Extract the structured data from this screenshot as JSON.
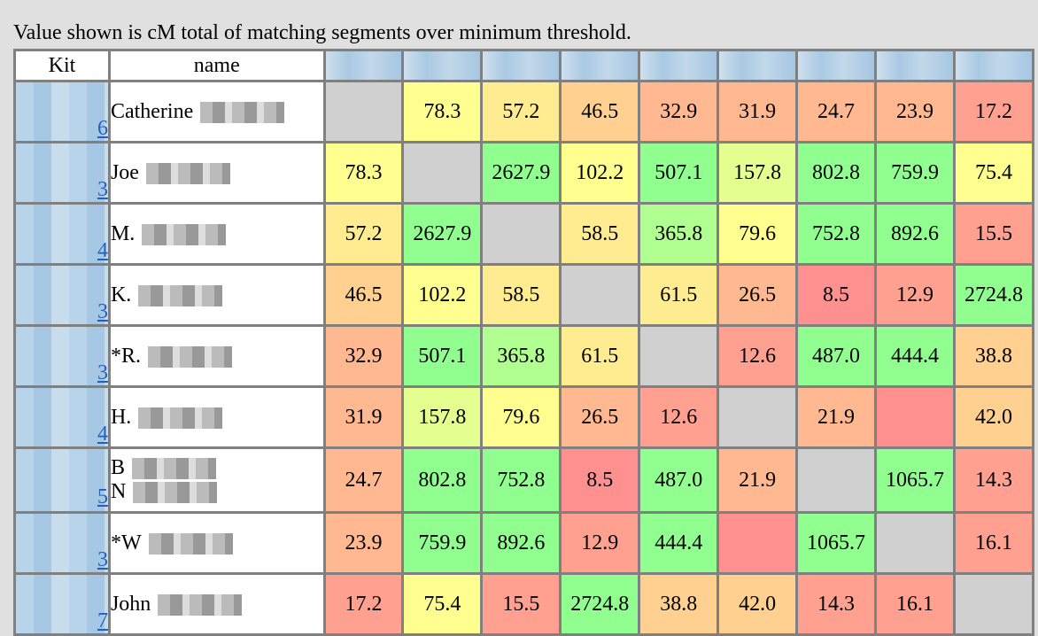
{
  "caption": "Value shown is cM total of matching segments over minimum threshold.",
  "headers": {
    "kit": "Kit",
    "name": "name"
  },
  "colors": {
    "self": "#d0d0d0",
    "none": "#ff9090",
    "lt10": "#ff9090",
    "lt20": "#ffa090",
    "lt36": "#ffb890",
    "lt50": "#ffd090",
    "lt62": "#ffec90",
    "lt130": "#ffff90",
    "lt200": "#e4ff90",
    "lt400": "#b0ff90",
    "high": "#90ff90"
  },
  "rows": [
    {
      "kit_suffix": "6",
      "name": "Catherine",
      "values": [
        null,
        "78.3",
        "57.2",
        "46.5",
        "32.9",
        "31.9",
        "24.7",
        "23.9",
        "17.2"
      ]
    },
    {
      "kit_suffix": "3",
      "name": "Joe",
      "values": [
        "78.3",
        null,
        "2627.9",
        "102.2",
        "507.1",
        "157.8",
        "802.8",
        "759.9",
        "75.4"
      ]
    },
    {
      "kit_suffix": "4",
      "name": "M.",
      "values": [
        "57.2",
        "2627.9",
        null,
        "58.5",
        "365.8",
        "79.6",
        "752.8",
        "892.6",
        "15.5"
      ]
    },
    {
      "kit_suffix": "3",
      "name": "K.",
      "values": [
        "46.5",
        "102.2",
        "58.5",
        null,
        "61.5",
        "26.5",
        "8.5",
        "12.9",
        "2724.8"
      ]
    },
    {
      "kit_suffix": "3",
      "name": "*R.",
      "values": [
        "32.9",
        "507.1",
        "365.8",
        "61.5",
        null,
        "12.6",
        "487.0",
        "444.4",
        "38.8"
      ]
    },
    {
      "kit_suffix": "4",
      "name": "H.",
      "values": [
        "31.9",
        "157.8",
        "79.6",
        "26.5",
        "12.6",
        null,
        "21.9",
        "",
        "42.0"
      ]
    },
    {
      "kit_suffix": "5",
      "name": "B",
      "name2": "N",
      "values": [
        "24.7",
        "802.8",
        "752.8",
        "8.5",
        "487.0",
        "21.9",
        null,
        "1065.7",
        "14.3"
      ]
    },
    {
      "kit_suffix": "3",
      "name": "*W",
      "values": [
        "23.9",
        "759.9",
        "892.6",
        "12.9",
        "444.4",
        "",
        "1065.7",
        null,
        "16.1"
      ]
    },
    {
      "kit_suffix": "7",
      "name": "John",
      "values": [
        "17.2",
        "75.4",
        "15.5",
        "2724.8",
        "38.8",
        "42.0",
        "14.3",
        "16.1",
        null
      ]
    }
  ]
}
